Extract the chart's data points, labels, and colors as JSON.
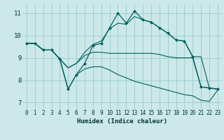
{
  "xlabel": "Humidex (Indice chaleur)",
  "bg_color": "#cce8e8",
  "line_color": "#006060",
  "grid_color": "#99cccc",
  "xlim": [
    -0.5,
    23.5
  ],
  "ylim": [
    6.7,
    11.4
  ],
  "yticks": [
    7,
    8,
    9,
    10,
    11
  ],
  "xticks": [
    0,
    1,
    2,
    3,
    4,
    5,
    6,
    7,
    8,
    9,
    10,
    11,
    12,
    13,
    14,
    15,
    16,
    17,
    18,
    19,
    20,
    21,
    22,
    23
  ],
  "line1_x": [
    0,
    1,
    2,
    3,
    4,
    5,
    6,
    7,
    8,
    9,
    10,
    11,
    12,
    13,
    14,
    15,
    16,
    17,
    18,
    19,
    20,
    21,
    22,
    23
  ],
  "line1_y": [
    9.65,
    9.65,
    9.35,
    9.35,
    8.95,
    7.6,
    8.25,
    8.75,
    9.55,
    9.65,
    10.35,
    11.0,
    10.55,
    11.1,
    10.7,
    10.6,
    10.35,
    10.1,
    9.8,
    9.75,
    9.05,
    7.7,
    7.65,
    7.6
  ],
  "line2_x": [
    0,
    1,
    2,
    3,
    4,
    5,
    6,
    7,
    8,
    9,
    10,
    11,
    12,
    13,
    14,
    15,
    16,
    17,
    18,
    19,
    20,
    21,
    22,
    23
  ],
  "line2_y": [
    9.65,
    9.65,
    9.35,
    9.35,
    8.95,
    8.55,
    8.75,
    9.25,
    9.6,
    9.75,
    10.3,
    10.55,
    10.5,
    10.85,
    10.7,
    10.6,
    10.35,
    10.1,
    9.8,
    9.75,
    9.05,
    9.05,
    7.65,
    7.6
  ],
  "line3_x": [
    0,
    1,
    2,
    3,
    4,
    5,
    6,
    7,
    8,
    9,
    10,
    11,
    12,
    13,
    14,
    15,
    16,
    17,
    18,
    19,
    20,
    21,
    22,
    23
  ],
  "line3_y": [
    9.65,
    9.65,
    9.35,
    9.35,
    8.95,
    8.55,
    8.75,
    9.1,
    9.25,
    9.25,
    9.2,
    9.2,
    9.2,
    9.2,
    9.2,
    9.2,
    9.15,
    9.05,
    9.0,
    9.0,
    9.0,
    7.7,
    7.65,
    7.6
  ],
  "line4_x": [
    0,
    1,
    2,
    3,
    4,
    5,
    6,
    7,
    8,
    9,
    10,
    11,
    12,
    13,
    14,
    15,
    16,
    17,
    18,
    19,
    20,
    21,
    22,
    23
  ],
  "line4_y": [
    9.65,
    9.65,
    9.35,
    9.35,
    8.95,
    7.6,
    8.25,
    8.5,
    8.6,
    8.6,
    8.45,
    8.25,
    8.1,
    7.95,
    7.85,
    7.75,
    7.65,
    7.55,
    7.45,
    7.35,
    7.3,
    7.1,
    7.05,
    7.55
  ]
}
